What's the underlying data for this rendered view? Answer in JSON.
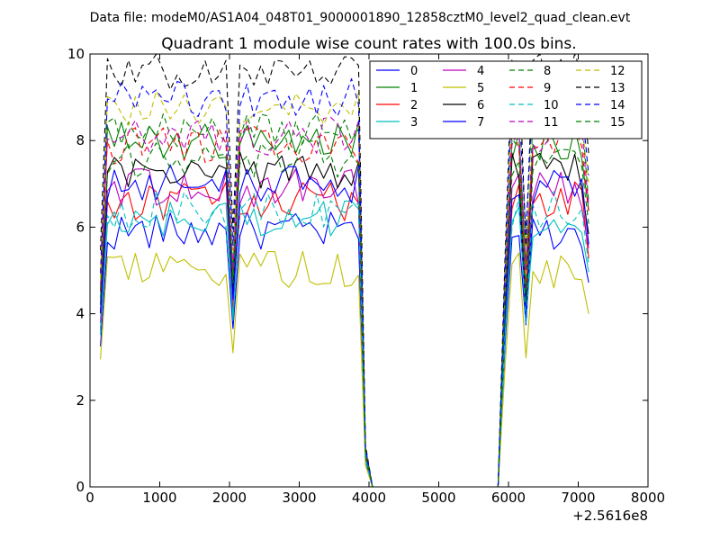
{
  "header": "Data file: modeM0/AS1A04_048T01_9000001890_12858cztM0_level2_quad_clean.evt",
  "chart_data": {
    "type": "line",
    "title": "Quadrant 1 module wise count rates with 100.0s bins.",
    "xlabel": "",
    "ylabel": "",
    "x_offset_label": "+2.5616e8",
    "xlim": [
      0,
      8000
    ],
    "ylim": [
      0,
      10
    ],
    "xticks": [
      "0",
      "1000",
      "2000",
      "3000",
      "4000",
      "5000",
      "6000",
      "7000",
      "8000"
    ],
    "yticks": [
      "0",
      "2",
      "4",
      "6",
      "8",
      "10"
    ],
    "grid": false,
    "legend_position": "top-right",
    "legend_columns": 4,
    "x": [
      150,
      250,
      350,
      450,
      550,
      650,
      750,
      850,
      950,
      1050,
      1150,
      1250,
      1350,
      1450,
      1550,
      1650,
      1750,
      1850,
      1950,
      2050,
      2150,
      2250,
      2350,
      2450,
      2550,
      2650,
      2750,
      2850,
      2950,
      3050,
      3150,
      3250,
      3350,
      3450,
      3550,
      3650,
      3750,
      3850,
      3950,
      4050,
      5850,
      5950,
      6050,
      6150,
      6250,
      6350,
      6450,
      6550,
      6650,
      6750,
      6850,
      6950,
      7050,
      7150
    ],
    "series": [
      {
        "name": "0",
        "color": "#0000ff",
        "dash": "solid",
        "level": 5.9
      },
      {
        "name": "1",
        "color": "#008000",
        "dash": "solid",
        "level": 8.0
      },
      {
        "name": "2",
        "color": "#ff0000",
        "dash": "solid",
        "level": 6.6
      },
      {
        "name": "3",
        "color": "#00bfbf",
        "dash": "solid",
        "level": 6.2
      },
      {
        "name": "4",
        "color": "#bf00bf",
        "dash": "solid",
        "level": 6.9
      },
      {
        "name": "5",
        "color": "#bfbf00",
        "dash": "solid",
        "level": 5.0
      },
      {
        "name": "6",
        "color": "#000000",
        "dash": "solid",
        "level": 7.3
      },
      {
        "name": "7",
        "color": "#0000ff",
        "dash": "solid",
        "level": 7.0
      },
      {
        "name": "8",
        "color": "#008000",
        "dash": "dashed",
        "level": 8.2
      },
      {
        "name": "9",
        "color": "#ff0000",
        "dash": "dashed",
        "level": 7.9
      },
      {
        "name": "10",
        "color": "#00bfbf",
        "dash": "dashed",
        "level": 6.4
      },
      {
        "name": "11",
        "color": "#bf00bf",
        "dash": "dashed",
        "level": 8.1
      },
      {
        "name": "12",
        "color": "#bfbf00",
        "dash": "dashed",
        "level": 8.8
      },
      {
        "name": "13",
        "color": "#000000",
        "dash": "dashed",
        "level": 9.6
      },
      {
        "name": "14",
        "color": "#0000ff",
        "dash": "dashed",
        "level": 9.0
      },
      {
        "name": "15",
        "color": "#008000",
        "dash": "dashed",
        "level": 7.6
      }
    ]
  }
}
